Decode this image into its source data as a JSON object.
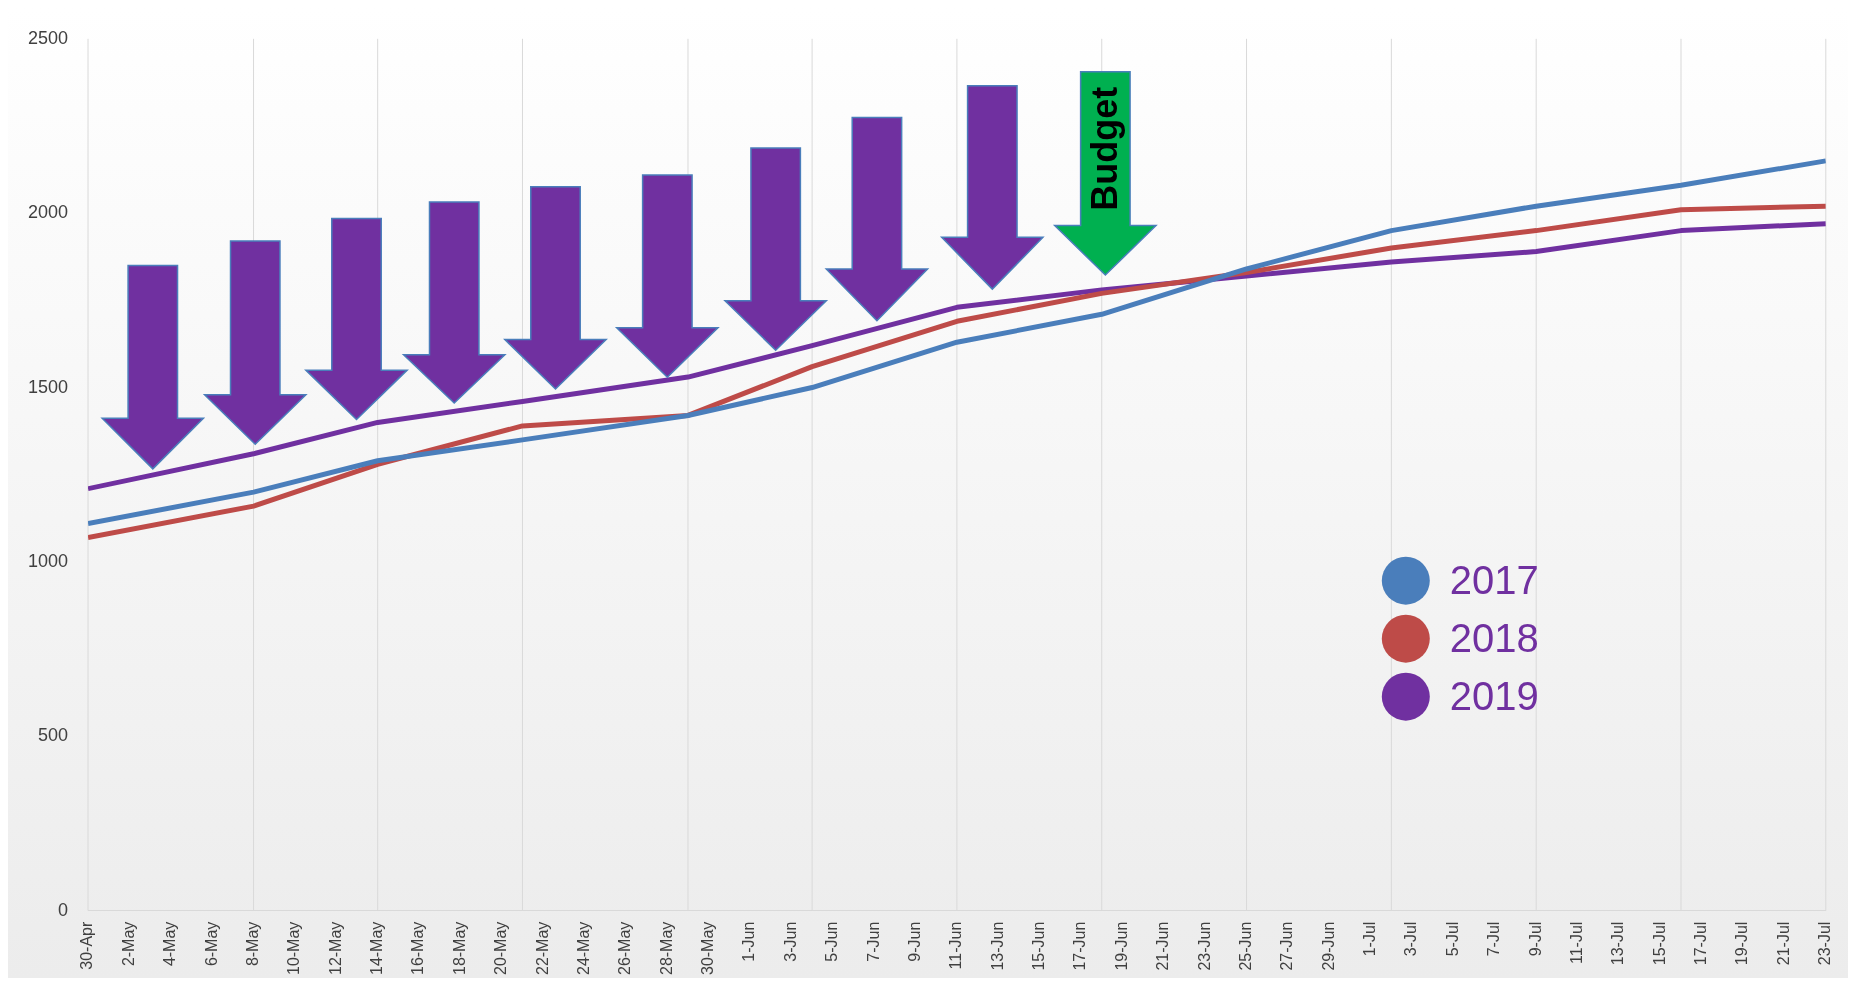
{
  "chart_data": {
    "type": "line",
    "x": [
      "--04-30",
      "--05-08",
      "--05-14",
      "--05-21",
      "--05-29",
      "--06-04",
      "--06-11",
      "--06-18",
      "--06-25",
      "--07-02",
      "--07-09",
      "--07-16",
      "--07-23"
    ],
    "series": [
      {
        "name": "2017",
        "color": "#4a7ebb",
        "values": [
          1110,
          1200,
          1290,
          1350,
          1420,
          1500,
          1630,
          1710,
          1840,
          1950,
          2020,
          2080,
          2150
        ]
      },
      {
        "name": "2018",
        "color": "#be4b48",
        "values": [
          1070,
          1160,
          1280,
          1390,
          1420,
          1560,
          1690,
          1770,
          1830,
          1900,
          1950,
          2010,
          2020
        ]
      },
      {
        "name": "2019",
        "color": "#7030a0",
        "values": [
          1210,
          1310,
          1400,
          1460,
          1530,
          1620,
          1730,
          1780,
          1820,
          1860,
          1890,
          1950,
          1970
        ]
      }
    ],
    "legend": "bottom right",
    "annotations": [
      "Budget"
    ],
    "ylim": [
      0,
      2500
    ],
    "yticks": [
      0,
      500,
      1000,
      1500,
      2000,
      2500
    ],
    "xlim": [
      "--04-30",
      "--07-23"
    ],
    "xticks": [
      {
        "value": "--04-30",
        "label": "30-Apr"
      },
      {
        "value": "--05-02",
        "label": "2-May"
      },
      {
        "value": "--05-04",
        "label": "4-May"
      },
      {
        "value": "--05-06",
        "label": "6-May"
      },
      {
        "value": "--05-08",
        "label": "8-May"
      },
      {
        "value": "--05-10",
        "label": "10-May"
      },
      {
        "value": "--05-12",
        "label": "12-May"
      },
      {
        "value": "--05-14",
        "label": "14-May"
      },
      {
        "value": "--05-16",
        "label": "16-May"
      },
      {
        "value": "--05-18",
        "label": "18-May"
      },
      {
        "value": "--05-20",
        "label": "20-May"
      },
      {
        "value": "--05-22",
        "label": "22-May"
      },
      {
        "value": "--05-24",
        "label": "24-May"
      },
      {
        "value": "--05-26",
        "label": "26-May"
      },
      {
        "value": "--05-28",
        "label": "28-May"
      },
      {
        "value": "--05-30",
        "label": "30-May"
      },
      {
        "value": "--06-01",
        "label": "1-Jun"
      },
      {
        "value": "--06-03",
        "label": "3-Jun"
      },
      {
        "value": "--06-05",
        "label": "5-Jun"
      },
      {
        "value": "--06-07",
        "label": "7-Jun"
      },
      {
        "value": "--06-09",
        "label": "9-Jun"
      },
      {
        "value": "--06-11",
        "label": "11-Jun"
      },
      {
        "value": "--06-13",
        "label": "13-Jun"
      },
      {
        "value": "--06-15",
        "label": "15-Jun"
      },
      {
        "value": "--06-17",
        "label": "17-Jun"
      },
      {
        "value": "--06-19",
        "label": "19-Jun"
      },
      {
        "value": "--06-21",
        "label": "21-Jun"
      },
      {
        "value": "--06-23",
        "label": "23-Jun"
      },
      {
        "value": "--06-25",
        "label": "25-Jun"
      },
      {
        "value": "--06-27",
        "label": "27-Jun"
      },
      {
        "value": "--06-29",
        "label": "29-Jun"
      },
      {
        "value": "--07-01",
        "label": "1-Jul"
      },
      {
        "value": "--07-03",
        "label": "3-Jul"
      },
      {
        "value": "--07-05",
        "label": "5-Jul"
      },
      {
        "value": "--07-07",
        "label": "7-Jul"
      },
      {
        "value": "--07-09",
        "label": "9-Jul"
      },
      {
        "value": "--07-11",
        "label": "11-Jul"
      },
      {
        "value": "--07-13",
        "label": "13-Jul"
      },
      {
        "value": "--07-15",
        "label": "15-Jul"
      },
      {
        "value": "--07-17",
        "label": "17-Jul"
      },
      {
        "value": "--07-19",
        "label": "19-Jul"
      },
      {
        "value": "--07-21",
        "label": "21-Jul"
      },
      {
        "value": "--07-23",
        "label": "23-Jul"
      }
    ],
    "grid": "x",
    "marker": "none",
    "line_style": "solid"
  }
}
